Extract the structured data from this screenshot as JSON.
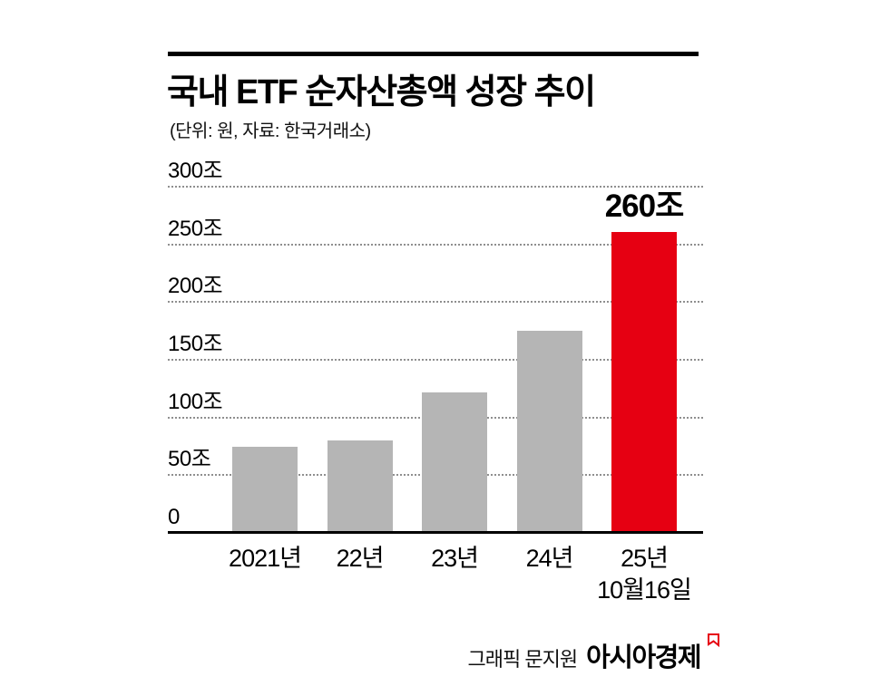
{
  "header": {
    "title": "국내 ETF 순자산총액 성장 추이",
    "subtitle": "(단위: 원, 자료: 한국거래소)"
  },
  "chart_data": {
    "type": "bar",
    "title": "국내 ETF 순자산총액 성장 추이",
    "unit_note": "(단위: 원, 자료: 한국거래소)",
    "categories": [
      "2021년",
      "22년",
      "23년",
      "24년",
      "25년\n10월16일"
    ],
    "values": [
      74,
      79,
      121,
      174,
      260
    ],
    "value_unit": "조",
    "ylim": [
      0,
      300
    ],
    "yticks": [
      {
        "value": 300,
        "label": "300조"
      },
      {
        "value": 250,
        "label": "250조"
      },
      {
        "value": 200,
        "label": "200조"
      },
      {
        "value": 150,
        "label": "150조"
      },
      {
        "value": 100,
        "label": "100조"
      },
      {
        "value": 50,
        "label": "50조"
      },
      {
        "value": 0,
        "label": "0"
      }
    ],
    "annotation": {
      "index": 4,
      "text": "260조"
    },
    "highlight_index": 4,
    "bar_colors": {
      "default": "#b5b5b5",
      "highlight": "#e60012"
    },
    "grid": "horizontal-dotted",
    "legend": "none"
  },
  "footer": {
    "credit": "그래픽 문지원",
    "brand": "아시아경제"
  },
  "colors": {
    "accent_red": "#e60012",
    "bar_gray": "#b5b5b5",
    "text_black": "#000000"
  }
}
